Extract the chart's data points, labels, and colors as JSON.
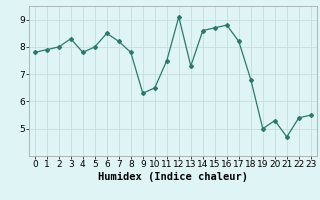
{
  "x": [
    0,
    1,
    2,
    3,
    4,
    5,
    6,
    7,
    8,
    9,
    10,
    11,
    12,
    13,
    14,
    15,
    16,
    17,
    18,
    19,
    20,
    21,
    22,
    23
  ],
  "y": [
    7.8,
    7.9,
    8.0,
    8.3,
    7.8,
    8.0,
    8.5,
    8.2,
    7.8,
    6.3,
    6.5,
    7.5,
    9.1,
    7.3,
    8.6,
    8.7,
    8.8,
    8.2,
    6.8,
    5.0,
    5.3,
    4.7,
    5.4,
    5.5
  ],
  "xlim": [
    -0.5,
    23.5
  ],
  "ylim": [
    4.0,
    9.5
  ],
  "yticks": [
    5,
    6,
    7,
    8,
    9
  ],
  "xticks": [
    0,
    1,
    2,
    3,
    4,
    5,
    6,
    7,
    8,
    9,
    10,
    11,
    12,
    13,
    14,
    15,
    16,
    17,
    18,
    19,
    20,
    21,
    22,
    23
  ],
  "xlabel": "Humidex (Indice chaleur)",
  "line_color": "#2a7a6a",
  "marker": "D",
  "marker_size": 2.0,
  "bg_color": "#dff4f4",
  "grid_color": "#c8dede",
  "xlabel_fontsize": 7.5,
  "tick_fontsize": 6.5
}
